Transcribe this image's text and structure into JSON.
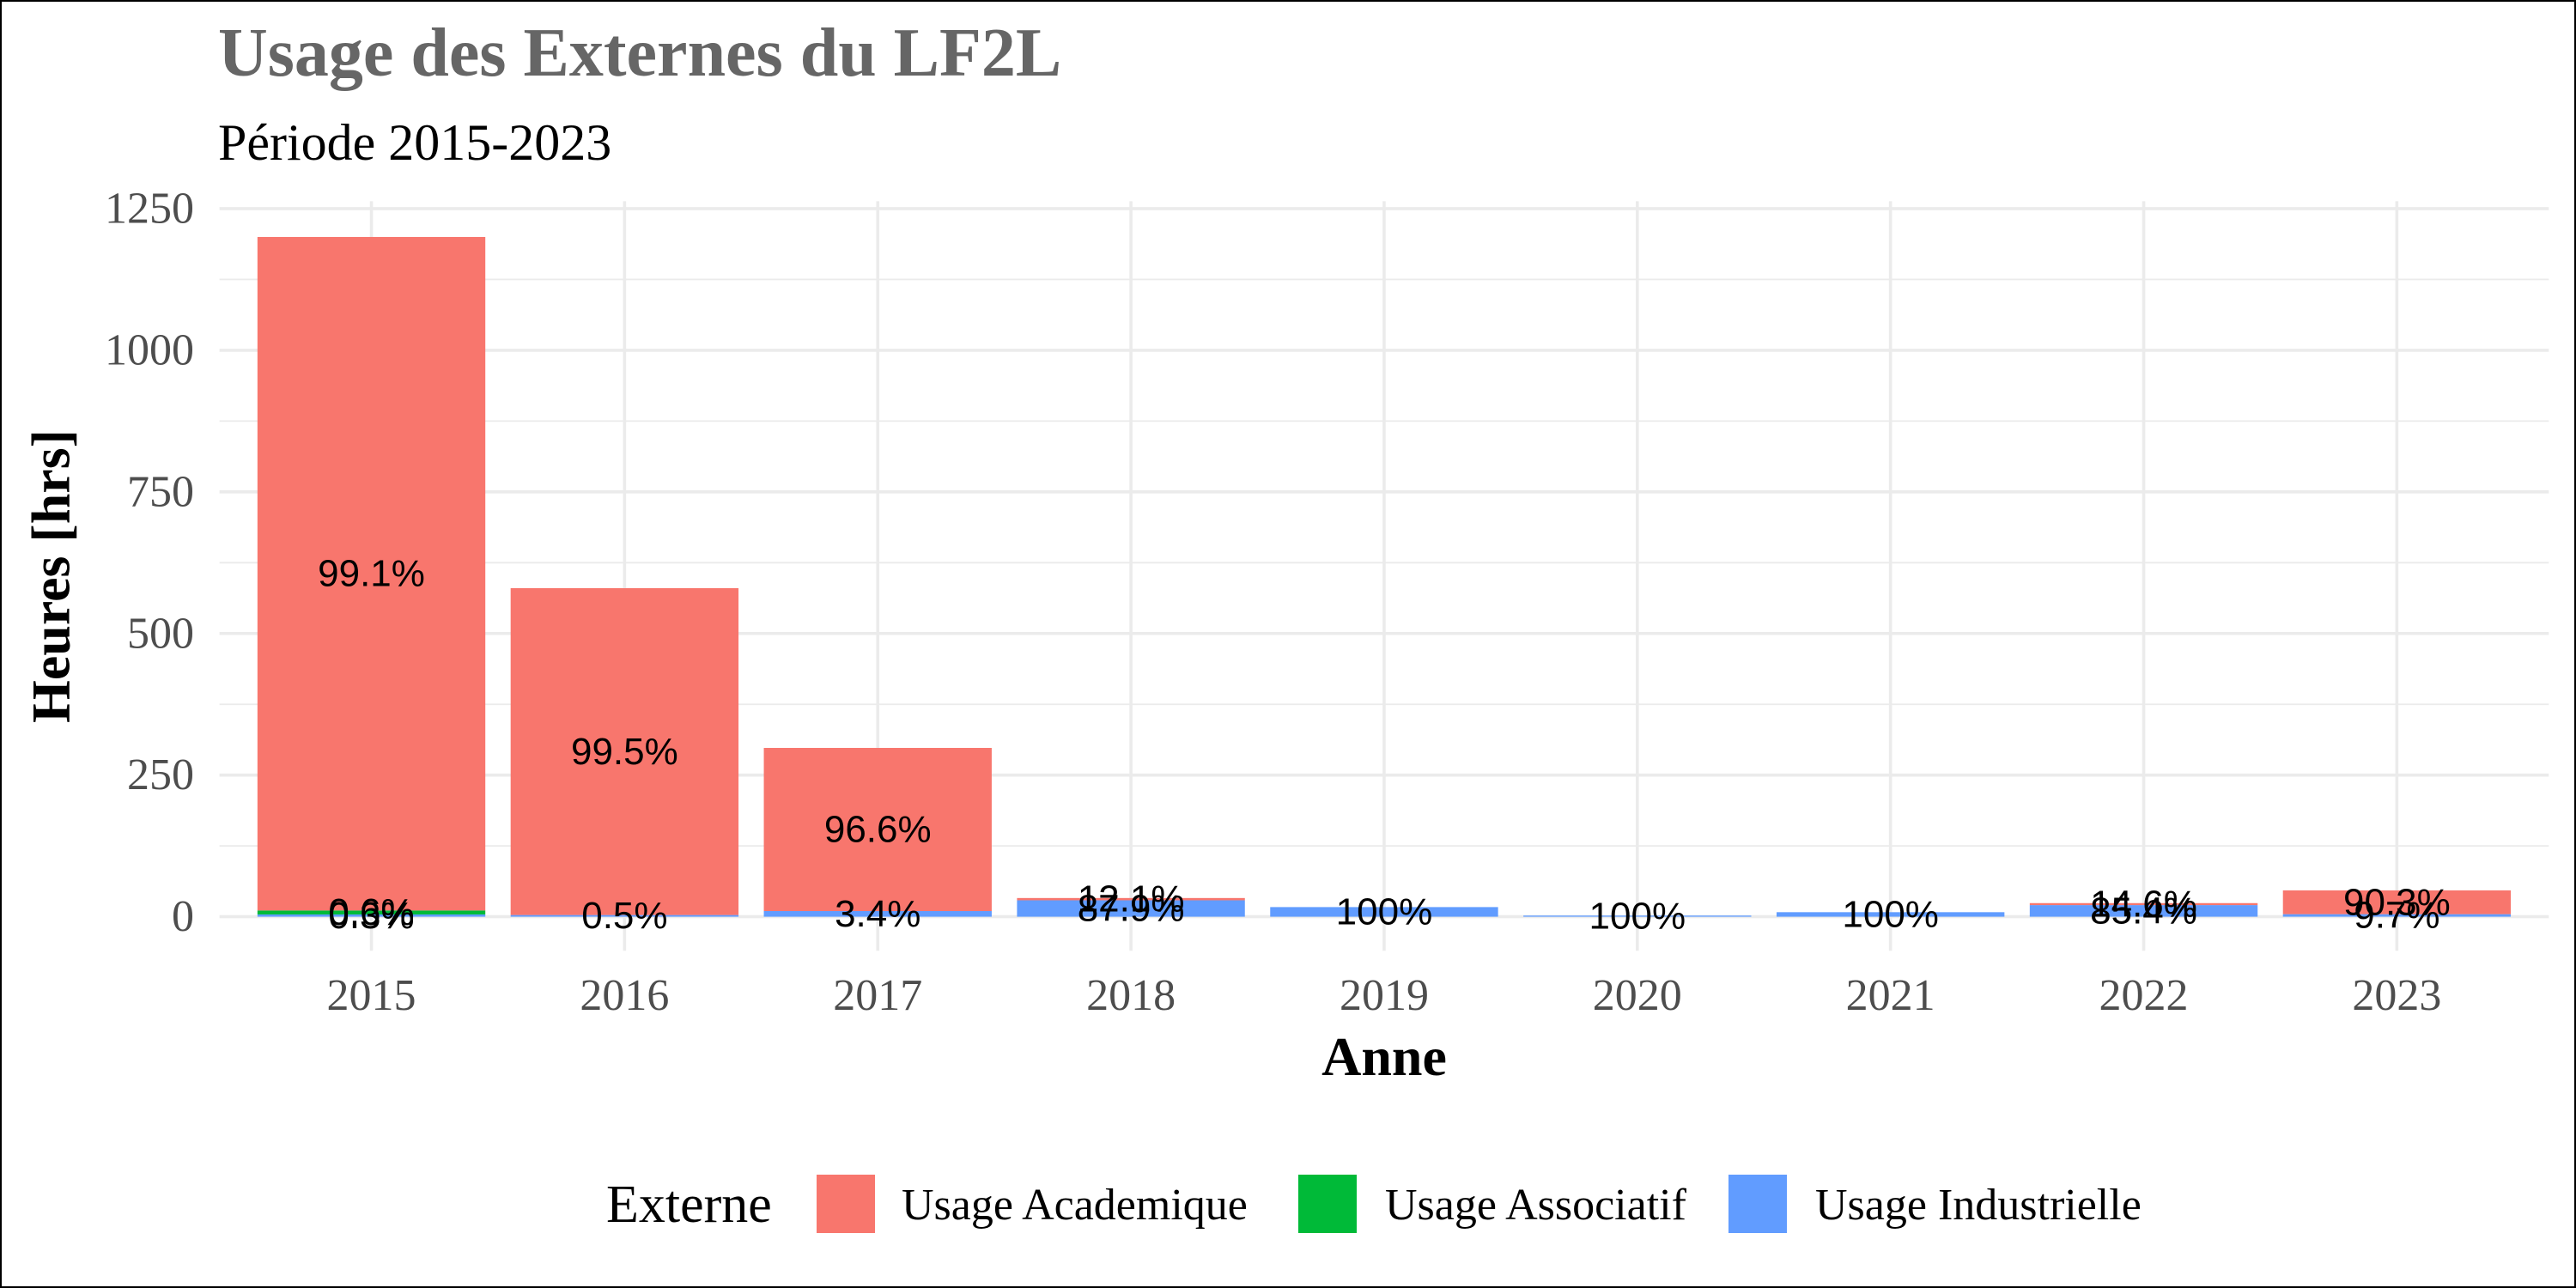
{
  "chart_data": {
    "type": "bar",
    "stacked": true,
    "title": "Usage des Externes du LF2L",
    "subtitle": "Période 2015-2023",
    "xlabel": "Anne",
    "ylabel": "Heures [hrs]",
    "categories": [
      "2015",
      "2016",
      "2017",
      "2018",
      "2019",
      "2020",
      "2021",
      "2022",
      "2023"
    ],
    "yticks": [
      0,
      250,
      500,
      750,
      1000,
      1250
    ],
    "ylim": [
      0,
      1250
    ],
    "grid": true,
    "legend_title": "Externe",
    "legend_position": "bottom",
    "series": [
      {
        "name": "Usage Academique",
        "color": "#F8766D",
        "values": [
          1189,
          577,
          288,
          4,
          0,
          0,
          0,
          3.5,
          42
        ],
        "labels": [
          "99.1%",
          "99.5%",
          "96.6%",
          "12.1%",
          "",
          "",
          "",
          "14.6%",
          "90.3%"
        ]
      },
      {
        "name": "Usage Associatif",
        "color": "#00BA38",
        "values": [
          7,
          0,
          0,
          0,
          0,
          0,
          0,
          0,
          0
        ],
        "labels": [
          "0.6%",
          "",
          "",
          "",
          "",
          "",
          "",
          "",
          ""
        ]
      },
      {
        "name": "Usage Industrielle",
        "color": "#619CFF",
        "values": [
          4,
          3,
          10,
          29,
          17,
          2,
          8,
          20.5,
          4.5
        ],
        "labels": [
          "0.3%",
          "0.5%",
          "3.4%",
          "87.9%",
          "100%",
          "100%",
          "100%",
          "85.4%",
          "9.7%"
        ]
      }
    ]
  }
}
